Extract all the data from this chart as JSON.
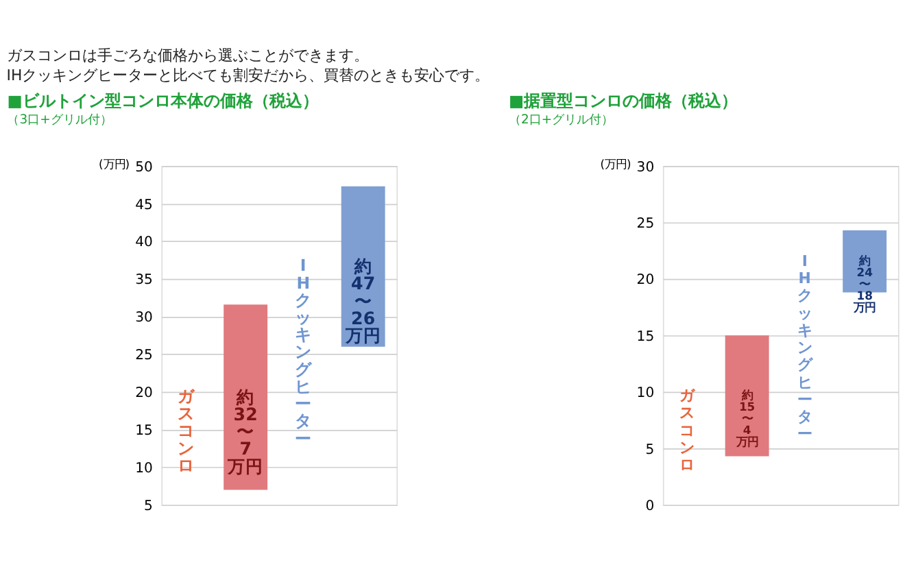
{
  "chart_data": [
    {
      "type": "bar",
      "title": "■ビルトイン型コンロ本体の価格（税込）",
      "subtitle": "（3口+グリル付）",
      "ylabel": "(万円)",
      "annotations": [
        "ガスコンロは手ごろな価格から選ぶことができます。",
        "IHクッキングヒーターと比べても割安だから、買替のときも安心です。"
      ],
      "categories": [
        "ガスコンロ",
        "IHクッキングヒーター"
      ],
      "values": [
        24.6,
        21.3
      ],
      "base": [
        7,
        26
      ],
      "colors": [
        "#e07a7e",
        "#7f9fd2"
      ],
      "value_labels": [
        "約32〜7万円",
        "約47〜26万円"
      ],
      "ylim": [
        5,
        50
      ],
      "yticks": [
        5,
        10,
        15,
        20,
        25,
        30,
        35,
        40,
        45,
        50
      ],
      "grid": "y",
      "legend": false
    },
    {
      "type": "bar",
      "title": "■据置型コンロの価格（税込）",
      "subtitle": "（2口+グリル付）",
      "ylabel": "(万円)",
      "categories": [
        "ガスコンロ",
        "IHクッキングヒーター"
      ],
      "values": [
        10.7,
        5.5
      ],
      "base": [
        4.3,
        18.8
      ],
      "colors": [
        "#e07a7e",
        "#7f9fd2"
      ],
      "value_labels": [
        "約15〜4万円",
        "約24〜18万円"
      ],
      "ylim": [
        0,
        30
      ],
      "yticks": [
        0,
        5,
        10,
        15,
        20,
        25,
        30
      ],
      "grid": "y",
      "legend": false
    }
  ]
}
